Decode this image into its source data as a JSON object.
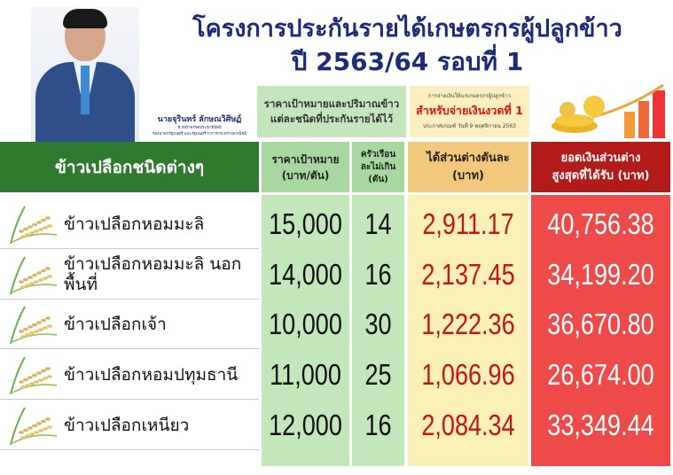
{
  "header": {
    "title_line1": "โครงการประกันรายได้เกษตรกรผู้ปลูกข้าว",
    "title_line2": "ปี 2563/64 รอบที่ 1",
    "person_name": "นายจุรินทร์ ลักษณวิศิษฏ์",
    "person_role1": "หัวหน้าพรรคประชาธิปัตย์",
    "person_role2": "รองนายกรัฐมนตรี และรัฐมนตรีว่าการกระทรวงพาณิชย์",
    "box1_line1": "ราคาเป้าหมายและปริมาณข้าว",
    "box1_line2": "แต่ละชนิดที่ประกันรายได้ไว้",
    "box2_small": "การจ่ายเงินให้แก่เกษตรกรผู้ปลูกข้าว",
    "box2_big": "สำหรับจ่ายเงินงวดที่ 1",
    "box2_date": "ประกาศเกณฑ์ วันที่ 9 พฤศจิกายน 2563"
  },
  "table": {
    "columns": [
      "ข้าวเปลือกชนิดต่างๆ",
      "ราคาเป้าหมาย (บาท/ตัน)",
      "ครัวเรือนละไม่เกิน (ตัน)",
      "ได้ส่วนต่างตันละ (บาท)",
      "ยอดเงินส่วนต่างสูงสุดที่ได้รับ (บาท)"
    ],
    "col1_l1": "ราคาเป้าหมาย",
    "col1_l2": "(บาท/ตัน)",
    "col2_l1": "ครัวเรือน",
    "col2_l2": "ละไม่เกิน",
    "col2_l3": "(ตัน)",
    "col3_l1": "ได้ส่วนต่างตันละ",
    "col3_l2": "(บาท)",
    "col4_l1": "ยอดเงินส่วนต่าง",
    "col4_l2": "สูงสุดที่ได้รับ (บาท)",
    "rows": [
      {
        "name": "ข้าวเปลือกหอมมะลิ",
        "price": "15,000",
        "tons": "14",
        "diff": "2,911.17",
        "total": "40,756.38"
      },
      {
        "name": "ข้าวเปลือกหอมมะลิ นอกพื้นที่",
        "price": "14,000",
        "tons": "16",
        "diff": "2,137.45",
        "total": "34,199.20"
      },
      {
        "name": "ข้าวเปลือกเจ้า",
        "price": "10,000",
        "tons": "30",
        "diff": "1,222.36",
        "total": "36,670.80"
      },
      {
        "name": "ข้าวเปลือกหอมปทุมธานี",
        "price": "11,000",
        "tons": "25",
        "diff": "1,066.96",
        "total": "26,674.00"
      },
      {
        "name": "ข้าวเปลือกเหนียว",
        "price": "12,000",
        "tons": "16",
        "diff": "2,084.34",
        "total": "33,349.44"
      }
    ]
  },
  "colors": {
    "title": "#1d2a7a",
    "header_green": "#2f7a2e",
    "cell_green": "#c2e7bb",
    "cell_yellow": "#fbf1b6",
    "cell_red": "#ee4a4a",
    "header_red": "#b31b1b",
    "diff_text": "#c31515"
  }
}
